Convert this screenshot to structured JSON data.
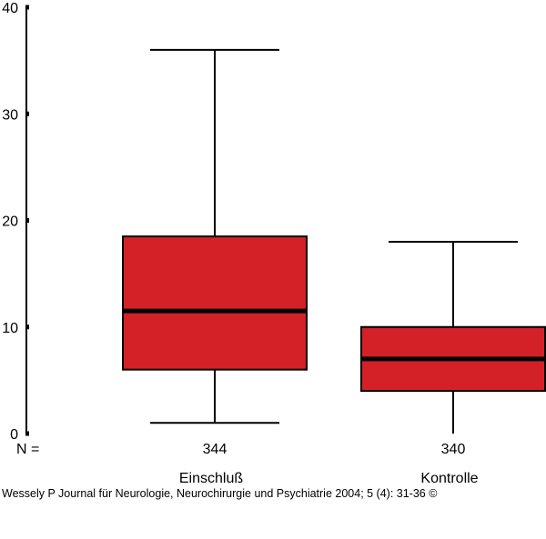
{
  "chart_data": {
    "type": "boxplot",
    "title": "",
    "xlabel": "",
    "ylabel": "",
    "ylim": [
      0,
      40
    ],
    "y_ticks": [
      0,
      10,
      20,
      30,
      40
    ],
    "y_tick_labels": [
      "0",
      "10",
      "20",
      "30",
      "40"
    ],
    "grid": false,
    "legend": "none",
    "n_label": "N =",
    "box_color": "#d42027",
    "categories": [
      "Einschluß",
      "Kontrolle"
    ],
    "groups": [
      {
        "category": "Einschluß",
        "n": "344",
        "min": 1,
        "q1": 6,
        "median": 11.5,
        "q3": 18.5,
        "max": 36
      },
      {
        "category": "Kontrolle",
        "n": "340",
        "min": 0,
        "q1": 4,
        "median": 7,
        "q3": 10,
        "max": 18
      }
    ]
  },
  "caption": "Wessely P Journal für Neurologie, Neurochirurgie und Psychiatrie 2004; 5 (4): 31-36 ©"
}
